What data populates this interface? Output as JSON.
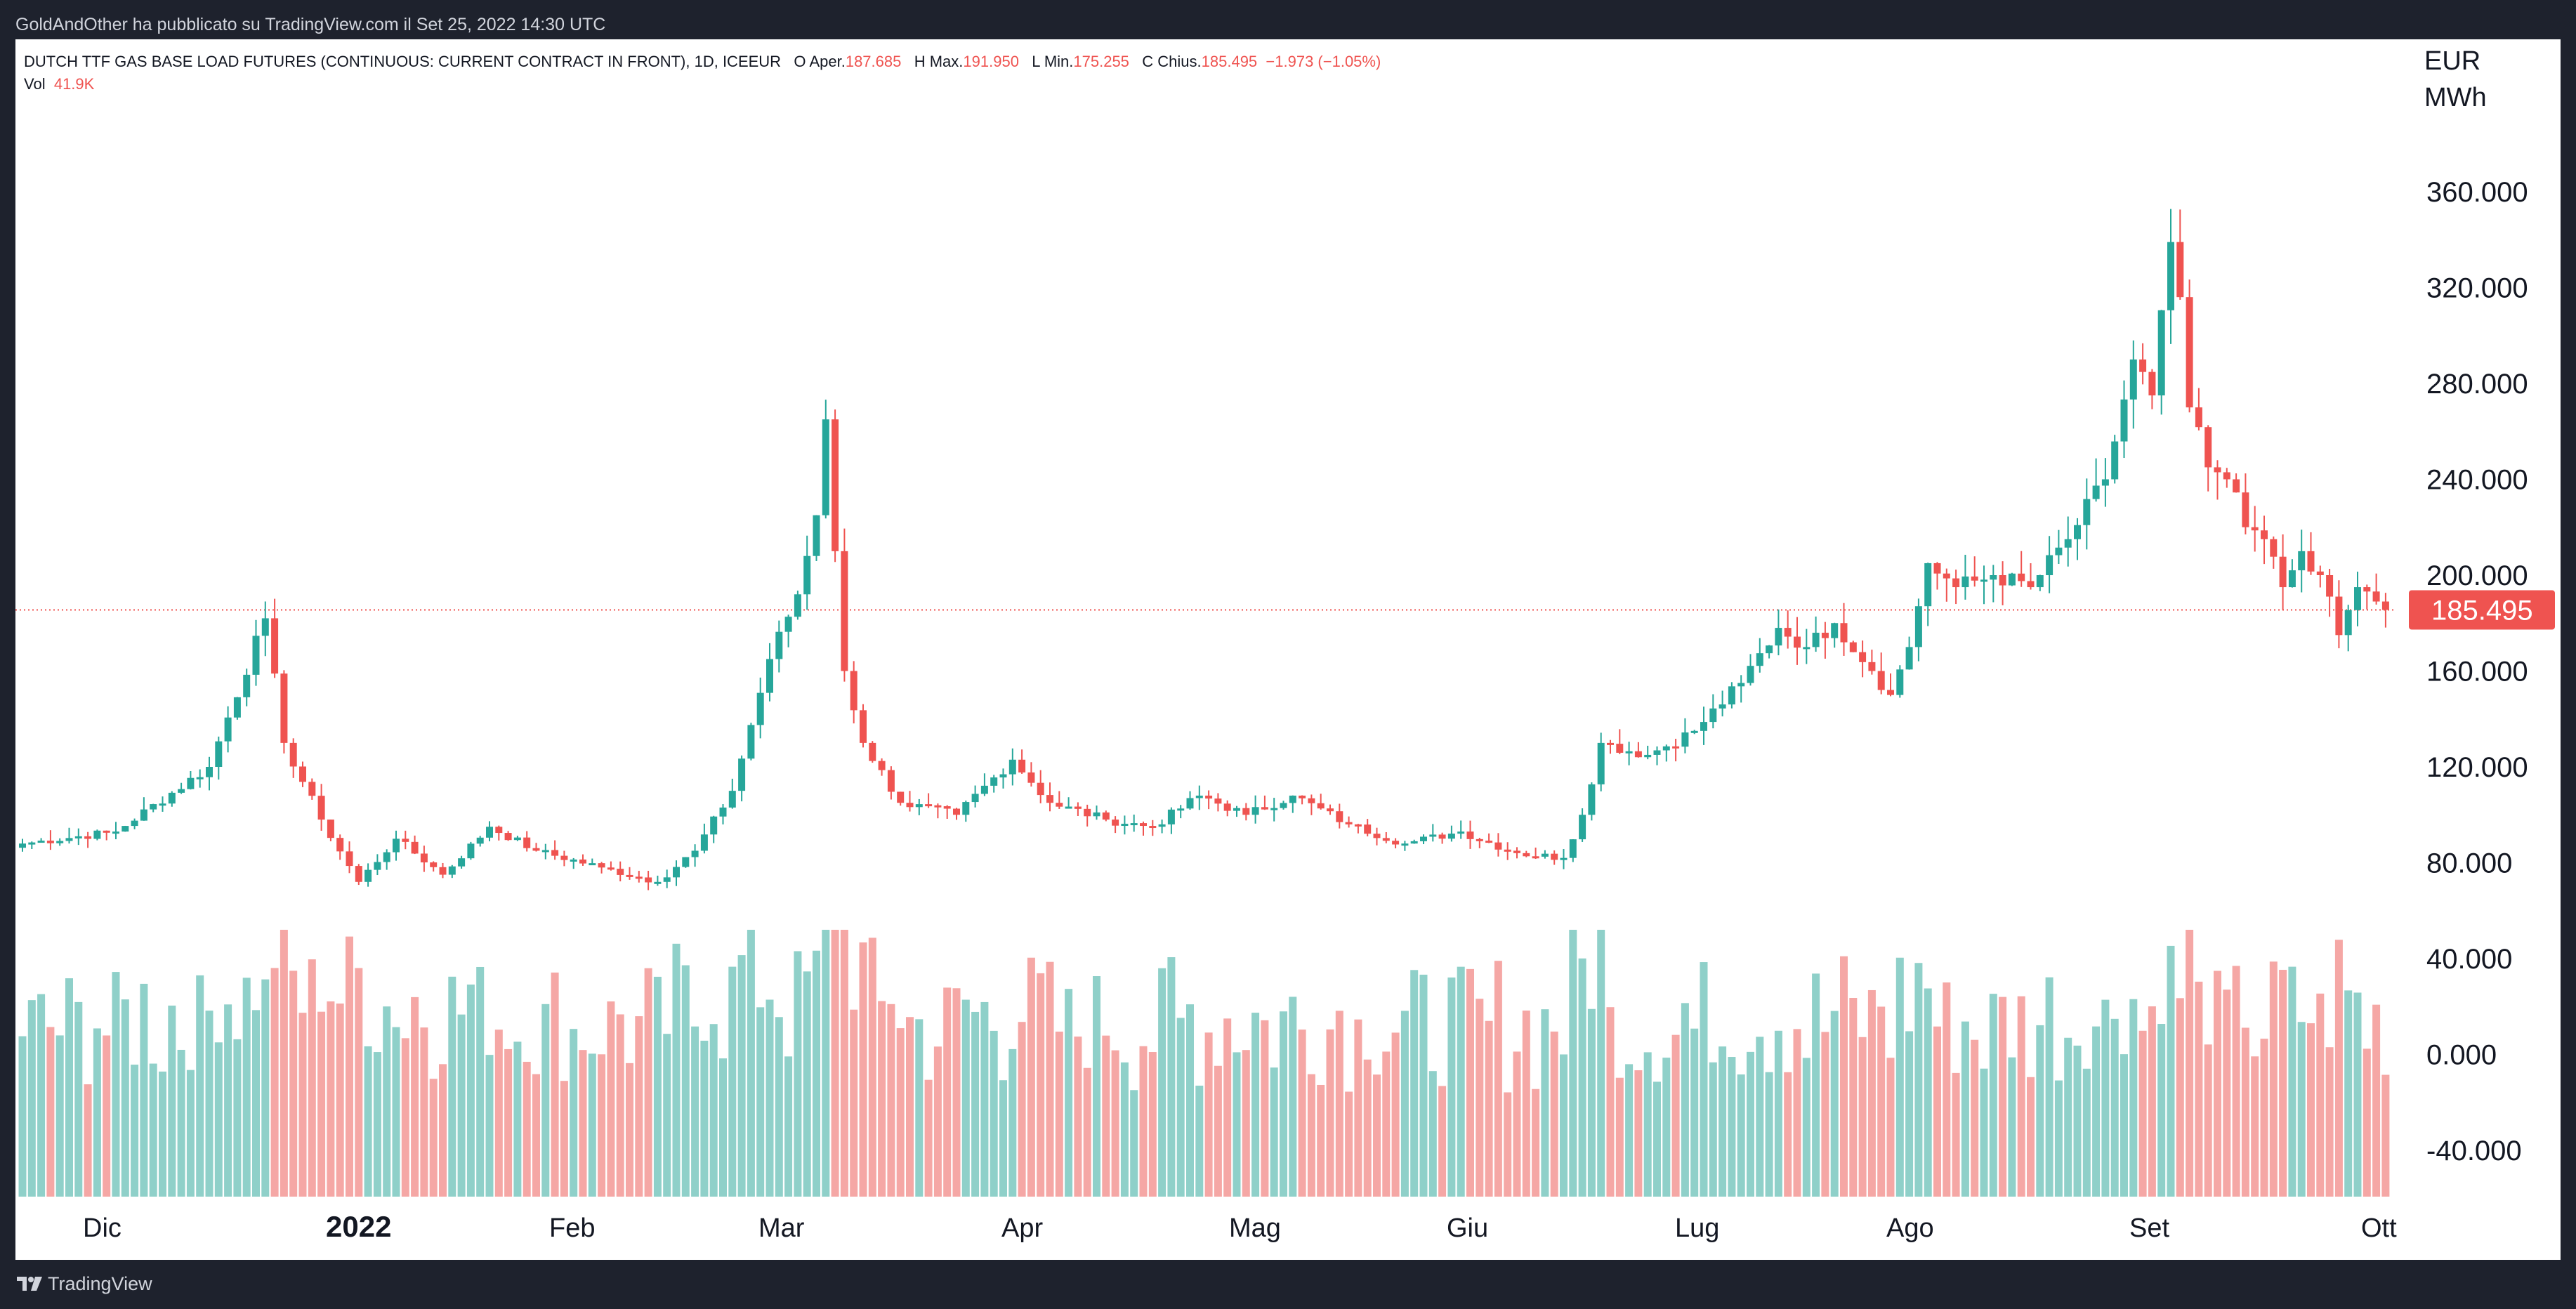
{
  "header": {
    "publisher": "GoldAndOther ha pubblicato su TradingView.com il Set 25, 2022 14:30 UTC"
  },
  "footer": {
    "brand": "TradingView",
    "logo_icon": "tradingview-logo-icon"
  },
  "legend": {
    "symbol": "DUTCH TTF GAS BASE LOAD FUTURES (CONTINUOUS: CURRENT CONTRACT IN FRONT), 1D, ICEEUR",
    "open_label": "O",
    "open_prefix": "Aper.",
    "open_value": "187.685",
    "high_label": "H",
    "high_prefix": "Max.",
    "high_value": "191.950",
    "low_label": "L",
    "low_prefix": "Min.",
    "low_value": "175.255",
    "close_label": "C",
    "close_prefix": "Chius.",
    "close_value": "185.495",
    "change": "−1.973 (−1.05%)",
    "vol_label": "Vol",
    "vol_value": "41.9K"
  },
  "axis": {
    "currency": "EUR",
    "unit": "MWh"
  },
  "colors": {
    "up": "#26a69a",
    "down": "#ef5350",
    "vol_up": "#8fd0c9",
    "vol_down": "#f5a7a5",
    "background": "#ffffff",
    "frame": "#1e222d"
  },
  "chart_data": {
    "type": "candlestick",
    "title": "DUTCH TTF GAS BASE LOAD FUTURES (CONTINUOUS: CURRENT CONTRACT IN FRONT), 1D, ICEEUR",
    "ylabel": "EUR MWh",
    "ylim": [
      -60,
      380
    ],
    "y_ticks": [
      "360.000",
      "320.000",
      "280.000",
      "240.000",
      "200.000",
      "160.000",
      "120.000",
      "80.000",
      "40.000",
      "0.000",
      "-40.000"
    ],
    "x_tick_labels": [
      "Dic",
      "2022",
      "Feb",
      "Mar",
      "Apr",
      "Mag",
      "Giu",
      "Lug",
      "Ago",
      "Set",
      "Ott"
    ],
    "last_price": {
      "value": 185.495,
      "label": "185.495"
    },
    "grid": false,
    "ohlc_keyframes": [
      {
        "x": 0,
        "close": 88
      },
      {
        "x": 10,
        "close": 93
      },
      {
        "x": 20,
        "close": 120
      },
      {
        "x": 26,
        "close": 182
      },
      {
        "x": 28,
        "close": 130
      },
      {
        "x": 32,
        "close": 98
      },
      {
        "x": 36,
        "close": 72
      },
      {
        "x": 40,
        "close": 90
      },
      {
        "x": 45,
        "close": 75
      },
      {
        "x": 50,
        "close": 95
      },
      {
        "x": 55,
        "close": 85
      },
      {
        "x": 62,
        "close": 78
      },
      {
        "x": 68,
        "close": 72
      },
      {
        "x": 72,
        "close": 85
      },
      {
        "x": 76,
        "close": 110
      },
      {
        "x": 80,
        "close": 165
      },
      {
        "x": 83,
        "close": 192
      },
      {
        "x": 85,
        "close": 225
      },
      {
        "x": 86,
        "close": 265
      },
      {
        "x": 87,
        "close": 210
      },
      {
        "x": 88,
        "close": 160
      },
      {
        "x": 90,
        "close": 130
      },
      {
        "x": 94,
        "close": 105
      },
      {
        "x": 100,
        "close": 100
      },
      {
        "x": 106,
        "close": 123
      },
      {
        "x": 110,
        "close": 105
      },
      {
        "x": 116,
        "close": 98
      },
      {
        "x": 121,
        "close": 95
      },
      {
        "x": 126,
        "close": 108
      },
      {
        "x": 131,
        "close": 100
      },
      {
        "x": 136,
        "close": 108
      },
      {
        "x": 142,
        "close": 96
      },
      {
        "x": 148,
        "close": 88
      },
      {
        "x": 154,
        "close": 93
      },
      {
        "x": 160,
        "close": 84
      },
      {
        "x": 165,
        "close": 82
      },
      {
        "x": 167,
        "close": 100
      },
      {
        "x": 169,
        "close": 130
      },
      {
        "x": 174,
        "close": 125
      },
      {
        "x": 179,
        "close": 135
      },
      {
        "x": 184,
        "close": 155
      },
      {
        "x": 188,
        "close": 178
      },
      {
        "x": 191,
        "close": 170
      },
      {
        "x": 194,
        "close": 180
      },
      {
        "x": 198,
        "close": 160
      },
      {
        "x": 200,
        "close": 150
      },
      {
        "x": 202,
        "close": 170
      },
      {
        "x": 204,
        "close": 205
      },
      {
        "x": 207,
        "close": 195
      },
      {
        "x": 211,
        "close": 200
      },
      {
        "x": 215,
        "close": 195
      },
      {
        "x": 219,
        "close": 215
      },
      {
        "x": 223,
        "close": 240
      },
      {
        "x": 226,
        "close": 290
      },
      {
        "x": 228,
        "close": 275
      },
      {
        "x": 230,
        "close": 339
      },
      {
        "x": 231,
        "close": 316
      },
      {
        "x": 232,
        "close": 270
      },
      {
        "x": 234,
        "close": 245
      },
      {
        "x": 236,
        "close": 240
      },
      {
        "x": 238,
        "close": 220
      },
      {
        "x": 240,
        "close": 215
      },
      {
        "x": 242,
        "close": 195
      },
      {
        "x": 244,
        "close": 210
      },
      {
        "x": 246,
        "close": 200
      },
      {
        "x": 248,
        "close": 175
      },
      {
        "x": 250,
        "close": 195
      },
      {
        "x": 252,
        "close": 189
      },
      {
        "x": 253,
        "close": 185.495
      }
    ]
  }
}
